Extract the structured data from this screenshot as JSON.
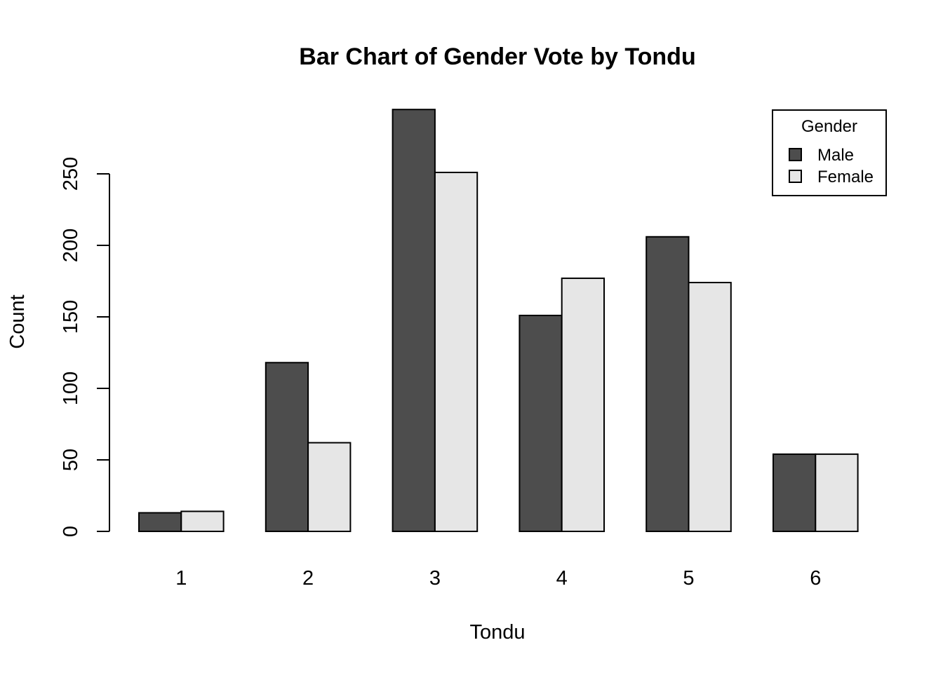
{
  "chart_data": {
    "type": "bar",
    "title": "Bar Chart of Gender Vote by Tondu",
    "xlabel": "Tondu",
    "ylabel": "Count",
    "categories": [
      "1",
      "2",
      "3",
      "4",
      "5",
      "6"
    ],
    "series": [
      {
        "name": "Male",
        "values": [
          13,
          118,
          295,
          151,
          206,
          54
        ],
        "color": "#4d4d4d"
      },
      {
        "name": "Female",
        "values": [
          14,
          62,
          251,
          177,
          174,
          54
        ],
        "color": "#e6e6e6"
      }
    ],
    "ylim": [
      0,
      295
    ],
    "yticks": [
      0,
      50,
      100,
      150,
      200,
      250
    ],
    "grid": false,
    "legend": {
      "title": "Gender",
      "position": "top-right"
    }
  }
}
